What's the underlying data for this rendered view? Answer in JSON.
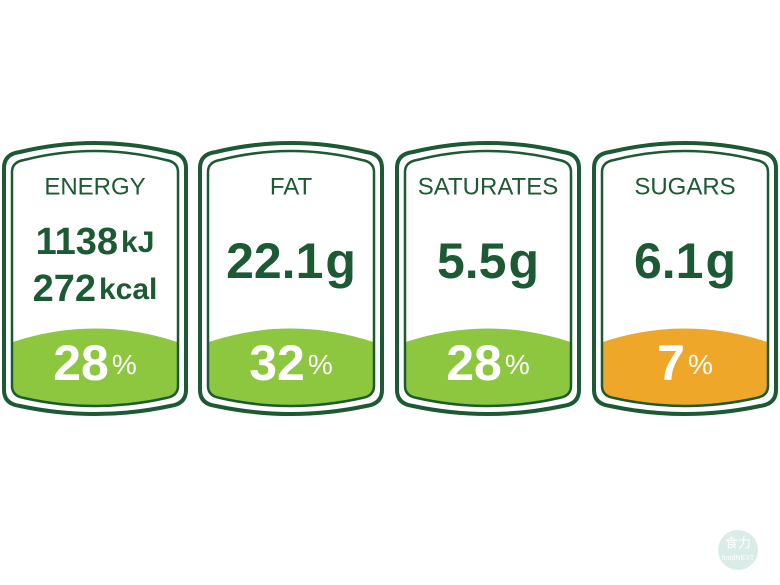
{
  "panels": [
    {
      "name": "ENERGY",
      "amounts": [
        {
          "number": "1138",
          "unit": "kJ"
        },
        {
          "number": "272",
          "unit": "kcal"
        }
      ],
      "percent": {
        "number": "28",
        "unit": "%"
      },
      "color": "#8dc63f"
    },
    {
      "name": "FAT",
      "amounts": [
        {
          "number": "22.1",
          "unit": "g"
        }
      ],
      "percent": {
        "number": "32",
        "unit": "%"
      },
      "color": "#8dc63f"
    },
    {
      "name": "SATURATES",
      "amounts": [
        {
          "number": "5.5",
          "unit": "g"
        }
      ],
      "percent": {
        "number": "28",
        "unit": "%"
      },
      "color": "#8dc63f"
    },
    {
      "name": "SUGARS",
      "amounts": [
        {
          "number": "6.1",
          "unit": "g"
        }
      ],
      "percent": {
        "number": "7",
        "unit": "%"
      },
      "color": "#eea729"
    }
  ],
  "watermark": {
    "title": "食力",
    "subtitle": "foodNEXT"
  }
}
